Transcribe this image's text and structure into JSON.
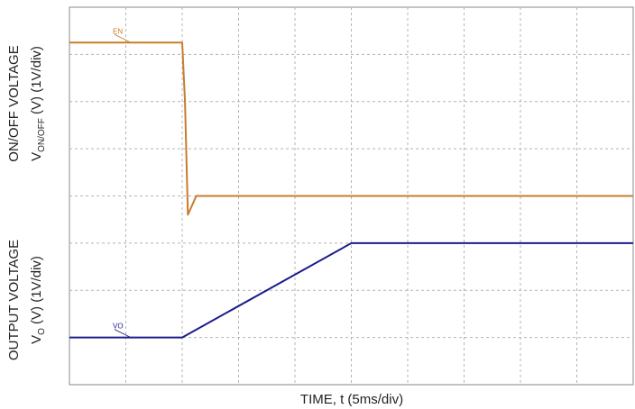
{
  "chart_data": {
    "type": "line",
    "title": "",
    "xlabel": "TIME, t (5ms/div)",
    "ylabel_top_line1": "ON/OFF VOLTAGE",
    "ylabel_top_line2_main": "V",
    "ylabel_top_line2_sub": "ON/OFF",
    "ylabel_top_line2_rest": " (V) (1V/div)",
    "ylabel_bottom_line1": "OUTPUT VOLTAGE",
    "ylabel_bottom_line2_main": "V",
    "ylabel_bottom_line2_sub": "O",
    "ylabel_bottom_line2_rest": " (V) (1V/div)",
    "x_divisions": 10,
    "y_divisions": 8,
    "grid": true,
    "xlim": [
      0,
      10
    ],
    "ylim": [
      0,
      8
    ],
    "series": [
      {
        "marker_label": "EN",
        "color": "#c87d2c",
        "x": [
          0,
          2.0,
          2.05,
          2.1,
          2.25,
          10
        ],
        "y": [
          7.25,
          7.25,
          6.0,
          3.6,
          4.0,
          4.0
        ]
      },
      {
        "marker_label": "VO",
        "color": "#1c1c8c",
        "x": [
          0,
          2.0,
          5.0,
          10
        ],
        "y": [
          1.0,
          1.0,
          3.0,
          3.0
        ]
      }
    ]
  }
}
